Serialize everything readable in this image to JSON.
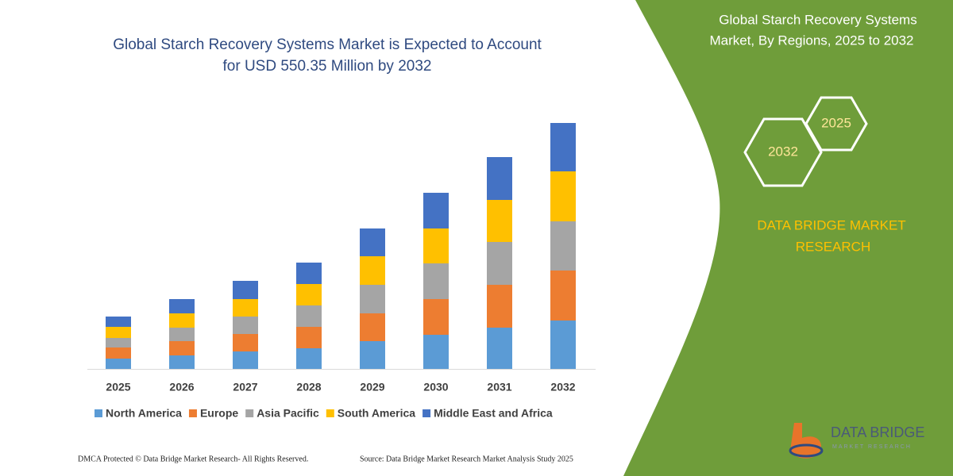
{
  "chart_data": {
    "type": "stacked_bar",
    "title": [
      "Global Starch Recovery Systems Market is Expected to Account",
      "for USD 550.35 Million by 2032"
    ],
    "categories": [
      "2025",
      "2026",
      "2027",
      "2028",
      "2029",
      "2030",
      "2031",
      "2032"
    ],
    "series": [
      {
        "name": "North America",
        "color": "#5b9bd5",
        "values": [
          13,
          17,
          22,
          26,
          35,
          43,
          52,
          61
        ]
      },
      {
        "name": "Europe",
        "color": "#ed7d31",
        "values": [
          14,
          18,
          22,
          27,
          35,
          45,
          54,
          63
        ]
      },
      {
        "name": "Asia Pacific",
        "color": "#a5a5a5",
        "values": [
          12,
          17,
          22,
          27,
          36,
          45,
          54,
          62
        ]
      },
      {
        "name": "South America",
        "color": "#ffc000",
        "values": [
          14,
          18,
          22,
          27,
          36,
          44,
          53,
          63
        ]
      },
      {
        "name": "Middle East and Africa",
        "color": "#4472c4",
        "values": [
          13,
          18,
          23,
          27,
          35,
          45,
          54,
          61
        ]
      }
    ],
    "ylim": [
      0,
      310
    ],
    "legend": "bottom"
  },
  "panel": {
    "title": [
      "Global Starch Recovery Systems",
      "Market, By Regions, 2025 to 2032"
    ],
    "hex_start": "2025",
    "hex_end": "2032",
    "brand": [
      "DATA BRIDGE MARKET",
      "RESEARCH"
    ],
    "logo": "DATA BRIDGE",
    "logo_sub": "MARKET RESEARCH"
  },
  "footer": {
    "left": "DMCA Protected © Data Bridge Market Research-  All Rights Reserved.",
    "right": "Source: Data Bridge Market Research  Market Analysis Study 2025"
  }
}
